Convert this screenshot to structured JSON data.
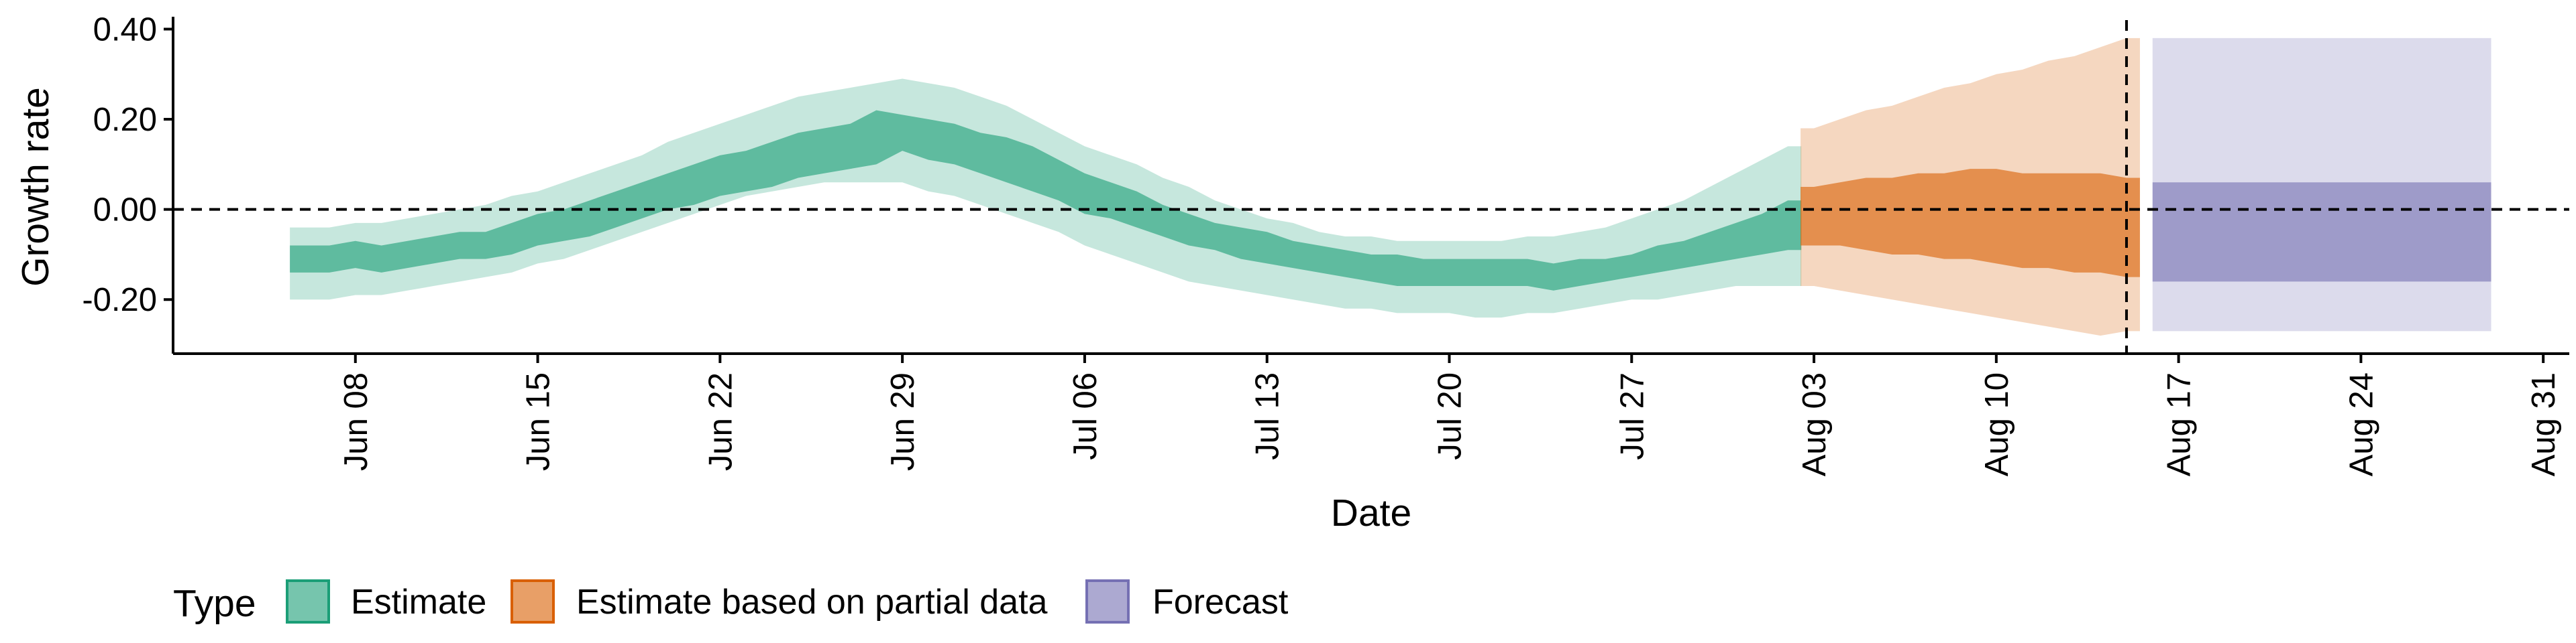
{
  "chart_data": {
    "type": "area",
    "xlabel": "Date",
    "ylabel": "Growth rate",
    "xlim": [
      "2021-06-01",
      "2021-09-01"
    ],
    "ylim": [
      -0.32,
      0.42
    ],
    "y_ticks": [
      -0.2,
      0.0,
      0.2,
      0.4
    ],
    "y_tick_labels": [
      "-0.20",
      "0.00",
      "0.20",
      "0.40"
    ],
    "x_ticks": [
      "2021-06-08",
      "2021-06-15",
      "2021-06-22",
      "2021-06-29",
      "2021-07-06",
      "2021-07-13",
      "2021-07-20",
      "2021-07-27",
      "2021-08-03",
      "2021-08-10",
      "2021-08-17",
      "2021-08-24",
      "2021-08-31"
    ],
    "x_tick_labels": [
      "Jun 08",
      "Jun 15",
      "Jun 22",
      "Jun 29",
      "Jul 06",
      "Jul 13",
      "Jul 20",
      "Jul 27",
      "Aug 03",
      "Aug 10",
      "Aug 17",
      "Aug 24",
      "Aug 31"
    ],
    "reference_lines": {
      "horizontal_y": 0.0,
      "vertical_x": "2021-08-15"
    },
    "grid": false,
    "legend": {
      "title": "Type",
      "position": "bottom-left"
    },
    "series": [
      {
        "name": "Estimate",
        "color": "#1b9e77",
        "x": [
          "2021-06-06",
          "2021-06-07",
          "2021-06-08",
          "2021-06-09",
          "2021-06-10",
          "2021-06-11",
          "2021-06-12",
          "2021-06-13",
          "2021-06-14",
          "2021-06-15",
          "2021-06-16",
          "2021-06-17",
          "2021-06-18",
          "2021-06-19",
          "2021-06-20",
          "2021-06-21",
          "2021-06-22",
          "2021-06-23",
          "2021-06-24",
          "2021-06-25",
          "2021-06-26",
          "2021-06-27",
          "2021-06-28",
          "2021-06-29",
          "2021-06-30",
          "2021-07-01",
          "2021-07-02",
          "2021-07-03",
          "2021-07-04",
          "2021-07-05",
          "2021-07-06",
          "2021-07-07",
          "2021-07-08",
          "2021-07-09",
          "2021-07-10",
          "2021-07-11",
          "2021-07-12",
          "2021-07-13",
          "2021-07-14",
          "2021-07-15",
          "2021-07-16",
          "2021-07-17",
          "2021-07-18",
          "2021-07-19",
          "2021-07-20",
          "2021-07-21",
          "2021-07-22",
          "2021-07-23",
          "2021-07-24",
          "2021-07-25",
          "2021-07-26",
          "2021-07-27",
          "2021-07-28",
          "2021-07-29",
          "2021-07-30",
          "2021-07-31",
          "2021-08-01",
          "2021-08-02"
        ],
        "inner_lower": [
          -0.14,
          -0.14,
          -0.13,
          -0.14,
          -0.13,
          -0.12,
          -0.11,
          -0.11,
          -0.1,
          -0.08,
          -0.07,
          -0.06,
          -0.04,
          -0.02,
          0.0,
          0.01,
          0.03,
          0.04,
          0.05,
          0.07,
          0.08,
          0.09,
          0.1,
          0.13,
          0.11,
          0.1,
          0.08,
          0.06,
          0.04,
          0.02,
          -0.01,
          -0.02,
          -0.04,
          -0.06,
          -0.08,
          -0.09,
          -0.11,
          -0.12,
          -0.13,
          -0.14,
          -0.15,
          -0.16,
          -0.17,
          -0.17,
          -0.17,
          -0.17,
          -0.17,
          -0.17,
          -0.18,
          -0.17,
          -0.16,
          -0.15,
          -0.14,
          -0.13,
          -0.12,
          -0.11,
          -0.1,
          -0.09
        ],
        "inner_upper": [
          -0.08,
          -0.08,
          -0.07,
          -0.08,
          -0.07,
          -0.06,
          -0.05,
          -0.05,
          -0.03,
          -0.01,
          0.0,
          0.02,
          0.04,
          0.06,
          0.08,
          0.1,
          0.12,
          0.13,
          0.15,
          0.17,
          0.18,
          0.19,
          0.22,
          0.21,
          0.2,
          0.19,
          0.17,
          0.16,
          0.14,
          0.11,
          0.08,
          0.06,
          0.04,
          0.01,
          -0.01,
          -0.03,
          -0.04,
          -0.05,
          -0.07,
          -0.08,
          -0.09,
          -0.1,
          -0.1,
          -0.11,
          -0.11,
          -0.11,
          -0.11,
          -0.11,
          -0.12,
          -0.11,
          -0.11,
          -0.1,
          -0.08,
          -0.07,
          -0.05,
          -0.03,
          -0.01,
          0.02
        ],
        "outer_lower": [
          -0.2,
          -0.2,
          -0.19,
          -0.19,
          -0.18,
          -0.17,
          -0.16,
          -0.15,
          -0.14,
          -0.12,
          -0.11,
          -0.09,
          -0.07,
          -0.05,
          -0.03,
          -0.01,
          0.01,
          0.03,
          0.04,
          0.05,
          0.06,
          0.06,
          0.06,
          0.06,
          0.04,
          0.03,
          0.01,
          -0.01,
          -0.03,
          -0.05,
          -0.08,
          -0.1,
          -0.12,
          -0.14,
          -0.16,
          -0.17,
          -0.18,
          -0.19,
          -0.2,
          -0.21,
          -0.22,
          -0.22,
          -0.23,
          -0.23,
          -0.23,
          -0.24,
          -0.24,
          -0.23,
          -0.23,
          -0.22,
          -0.21,
          -0.2,
          -0.2,
          -0.19,
          -0.18,
          -0.17,
          -0.17,
          -0.17
        ],
        "outer_upper": [
          -0.04,
          -0.04,
          -0.03,
          -0.03,
          -0.02,
          -0.01,
          0.0,
          0.01,
          0.03,
          0.04,
          0.06,
          0.08,
          0.1,
          0.12,
          0.15,
          0.17,
          0.19,
          0.21,
          0.23,
          0.25,
          0.26,
          0.27,
          0.28,
          0.29,
          0.28,
          0.27,
          0.25,
          0.23,
          0.2,
          0.17,
          0.14,
          0.12,
          0.1,
          0.07,
          0.05,
          0.02,
          0.0,
          -0.02,
          -0.03,
          -0.05,
          -0.06,
          -0.06,
          -0.07,
          -0.07,
          -0.07,
          -0.07,
          -0.07,
          -0.06,
          -0.06,
          -0.05,
          -0.04,
          -0.02,
          0.0,
          0.02,
          0.05,
          0.08,
          0.11,
          0.14
        ]
      },
      {
        "name": "Estimate based on partial data",
        "color": "#d95f02",
        "x": [
          "2021-08-03",
          "2021-08-04",
          "2021-08-05",
          "2021-08-06",
          "2021-08-07",
          "2021-08-08",
          "2021-08-09",
          "2021-08-10",
          "2021-08-11",
          "2021-08-12",
          "2021-08-13",
          "2021-08-14",
          "2021-08-15"
        ],
        "inner_lower": [
          -0.08,
          -0.08,
          -0.09,
          -0.1,
          -0.1,
          -0.11,
          -0.11,
          -0.12,
          -0.13,
          -0.13,
          -0.14,
          -0.14,
          -0.15
        ],
        "inner_upper": [
          0.05,
          0.06,
          0.07,
          0.07,
          0.08,
          0.08,
          0.09,
          0.09,
          0.08,
          0.08,
          0.08,
          0.08,
          0.07
        ],
        "outer_lower": [
          -0.17,
          -0.18,
          -0.19,
          -0.2,
          -0.21,
          -0.22,
          -0.23,
          -0.24,
          -0.25,
          -0.26,
          -0.27,
          -0.28,
          -0.27
        ],
        "outer_upper": [
          0.18,
          0.2,
          0.22,
          0.23,
          0.25,
          0.27,
          0.28,
          0.3,
          0.31,
          0.33,
          0.34,
          0.36,
          0.38
        ]
      },
      {
        "name": "Forecast",
        "color": "#7570b3",
        "x": [
          "2021-08-16",
          "2021-08-29"
        ],
        "inner_lower": [
          -0.16,
          -0.16
        ],
        "inner_upper": [
          0.06,
          0.06
        ],
        "outer_lower": [
          -0.27,
          -0.27
        ],
        "outer_upper": [
          0.38,
          0.38
        ]
      }
    ]
  }
}
